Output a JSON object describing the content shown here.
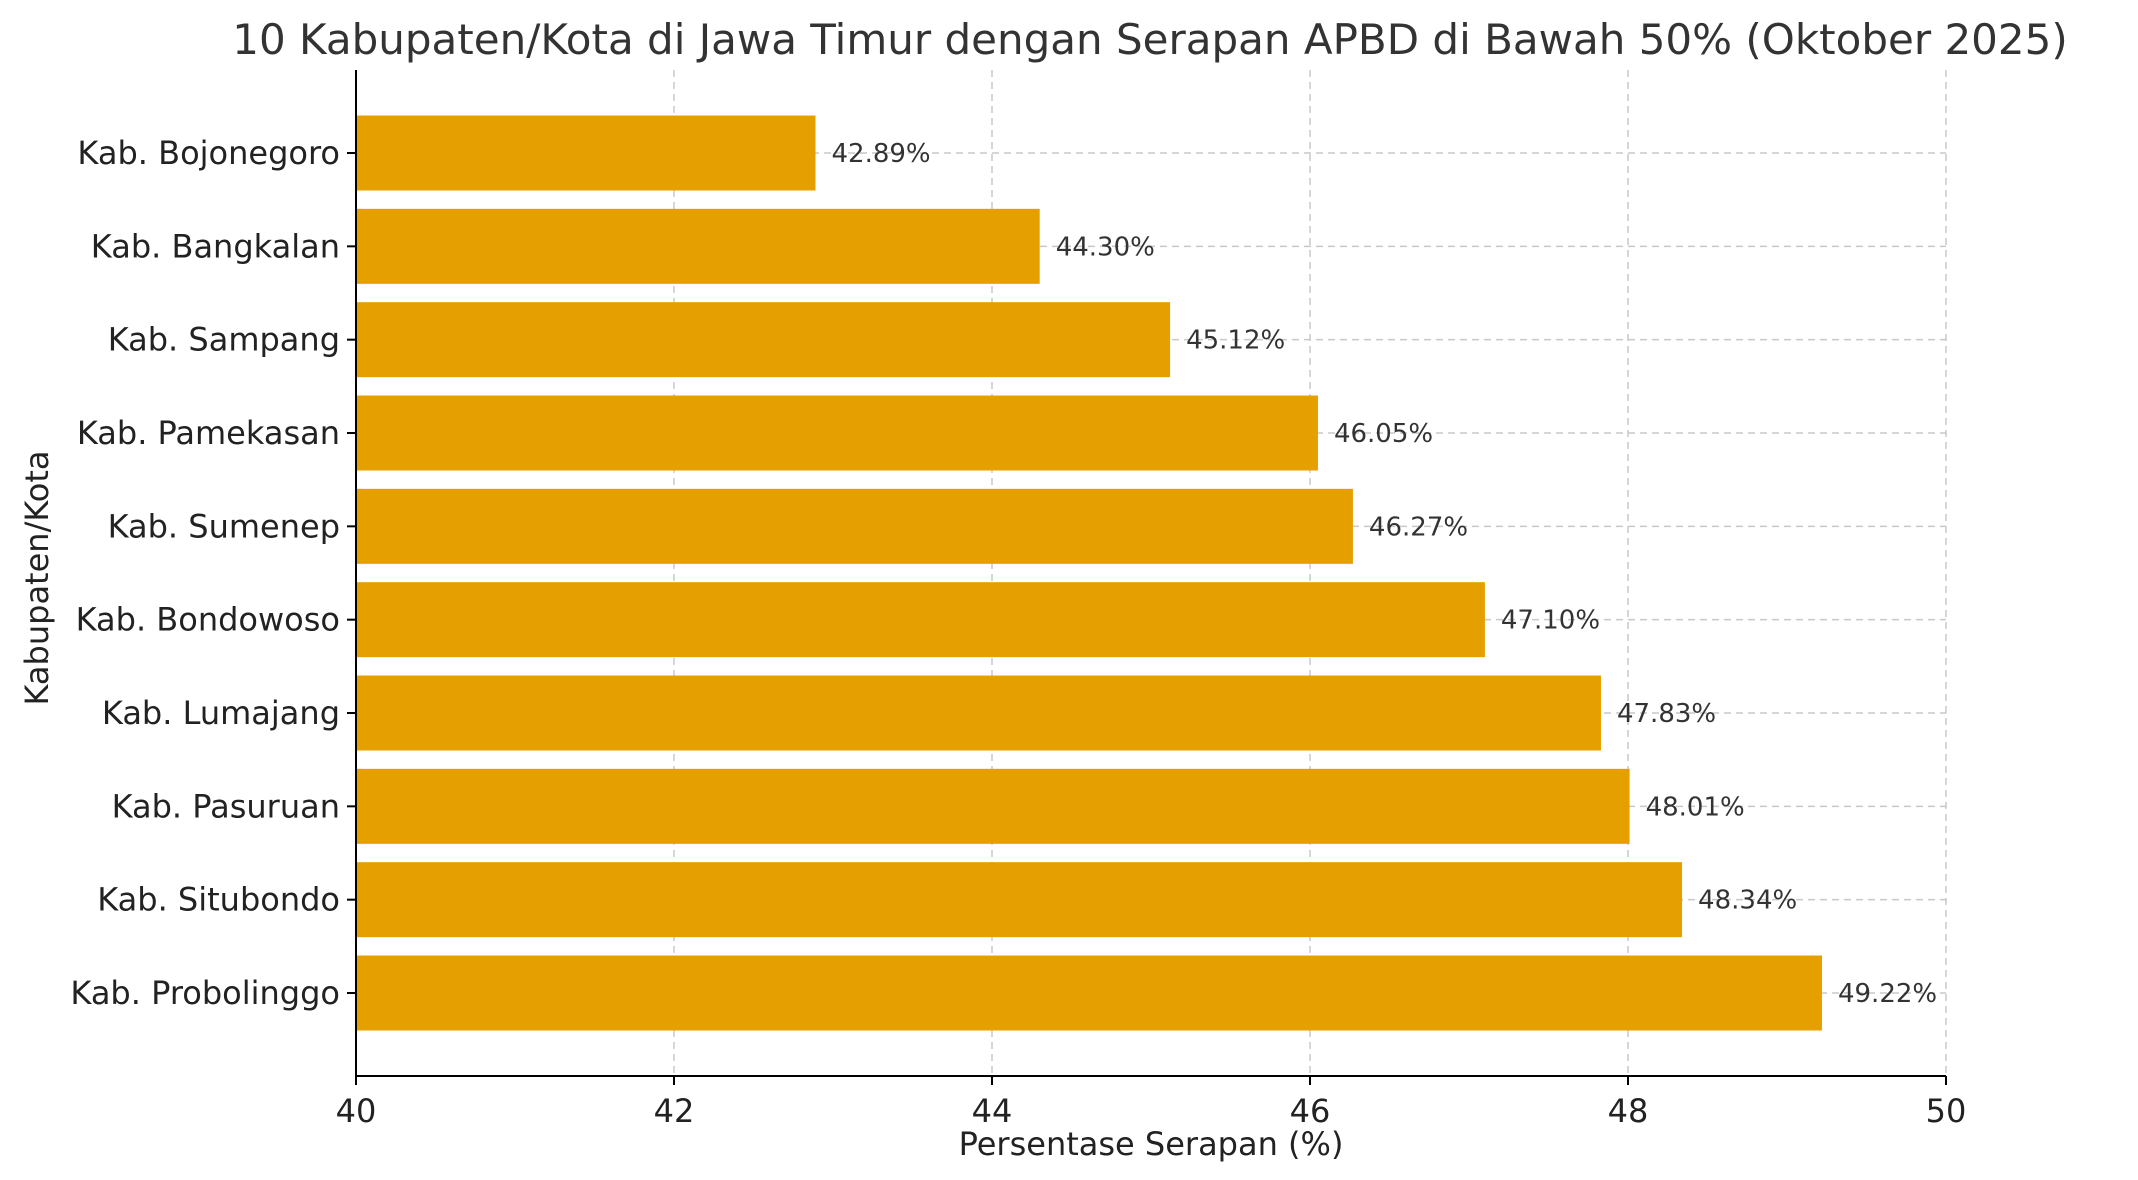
{
  "chart_data": {
    "type": "bar",
    "orientation": "horizontal",
    "title": "10 Kabupaten/Kota di Jawa Timur dengan Serapan APBD di Bawah 50% (Oktober 2025)",
    "xlabel": "Persentase Serapan (%)",
    "ylabel": "Kabupaten/Kota",
    "xlim": [
      40,
      50
    ],
    "xticks": [
      "40",
      "42",
      "44",
      "46",
      "48",
      "50"
    ],
    "grid": true,
    "bar_color": "#E5A000",
    "categories": [
      "Kab. Bojonegoro",
      "Kab. Bangkalan",
      "Kab. Sampang",
      "Kab. Pamekasan",
      "Kab. Sumenep",
      "Kab. Bondowoso",
      "Kab. Lumajang",
      "Kab. Pasuruan",
      "Kab. Situbondo",
      "Kab. Probolinggo"
    ],
    "values": [
      42.89,
      44.3,
      45.12,
      46.05,
      46.27,
      47.1,
      47.83,
      48.01,
      48.34,
      49.22
    ],
    "data_labels": [
      "42.89%",
      "44.30%",
      "45.12%",
      "46.05%",
      "46.27%",
      "47.10%",
      "47.83%",
      "48.01%",
      "48.34%",
      "49.22%"
    ]
  }
}
